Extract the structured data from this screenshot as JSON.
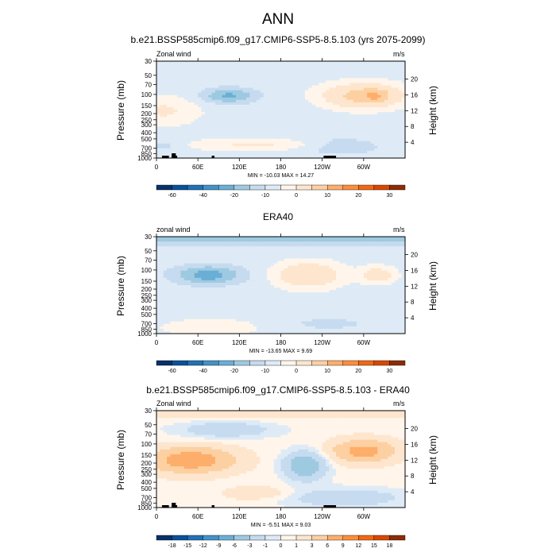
{
  "figure": {
    "title": "ANN"
  },
  "colormap": [
    "#08306b",
    "#08519c",
    "#2171b5",
    "#4292c6",
    "#6baed6",
    "#9ecae1",
    "#c6dbef",
    "#deebf7",
    "#fff5eb",
    "#fee6ce",
    "#fdd0a2",
    "#fdae6b",
    "#fd8d3c",
    "#f16913",
    "#d94801",
    "#8c2d04"
  ],
  "chart_data": [
    {
      "type": "heatmap",
      "title": "b.e21.BSSP585cmip6.f09_g17.CMIP6-SSP5-8.5.103 (yrs 2075-2099)",
      "left_label": "Zonal wind",
      "right_label": "m/s",
      "xlabel": "",
      "ylabel": "Pressure (mb)",
      "y2label": "Height (km)",
      "x_ticks": [
        "0",
        "60E",
        "120E",
        "180",
        "120W",
        "60W"
      ],
      "y_ticks": [
        "30",
        "50",
        "70",
        "100",
        "150",
        "200",
        "250",
        "300",
        "400",
        "500",
        "700",
        "850",
        "1000"
      ],
      "y2_ticks": [
        "20",
        "16",
        "12",
        "8",
        "4"
      ],
      "xlim": [
        0,
        360
      ],
      "ylim": [
        1000,
        30
      ],
      "stats": "MIN = -10.03  MAX =  14.27",
      "levels": [
        "-60",
        "-40",
        "-20",
        "-10",
        "0",
        "10",
        "20",
        "30"
      ],
      "features": [
        {
          "lon": 105,
          "p": 100,
          "value": -6
        },
        {
          "lon": 280,
          "p": 100,
          "value": 12
        },
        {
          "lon": 315,
          "p": 110,
          "value": 14
        },
        {
          "lon": 20,
          "p": 200,
          "value": 6
        },
        {
          "lon": 150,
          "p": 600,
          "value": 5
        },
        {
          "lon": 270,
          "p": 650,
          "value": -3
        }
      ]
    },
    {
      "type": "heatmap",
      "title": "ERA40",
      "left_label": "zonal wind",
      "right_label": "m/s",
      "xlabel": "",
      "ylabel": "Pressure (mb)",
      "y2label": "Height (km)",
      "x_ticks": [
        "0",
        "60E",
        "120E",
        "180",
        "120W",
        "60W"
      ],
      "y_ticks": [
        "30",
        "50",
        "70",
        "100",
        "150",
        "200",
        "250",
        "300",
        "400",
        "500",
        "700",
        "850",
        "1000"
      ],
      "y2_ticks": [
        "20",
        "16",
        "12",
        "8",
        "4"
      ],
      "xlim": [
        0,
        360
      ],
      "ylim": [
        1000,
        30
      ],
      "stats": "MIN = -13.65  MAX =   9.69",
      "levels": [
        "-60",
        "-40",
        "-20",
        "-10",
        "0",
        "10",
        "20",
        "30"
      ],
      "features": [
        {
          "lon": 75,
          "p": 120,
          "value": -8
        },
        {
          "lon": 220,
          "p": 120,
          "value": 8
        },
        {
          "lon": 320,
          "p": 120,
          "value": 7
        },
        {
          "lon": 0,
          "p": 40,
          "value": -4
        },
        {
          "lon": 80,
          "p": 800,
          "value": 3
        }
      ]
    },
    {
      "type": "heatmap",
      "title": "b.e21.BSSP585cmip6.f09_g17.CMIP6-SSP5-8.5.103 - ERA40",
      "left_label": "Zonal wind",
      "right_label": "m/s",
      "xlabel": "",
      "ylabel": "Pressure (mb)",
      "y2label": "Height (km)",
      "x_ticks": [
        "0",
        "60E",
        "120E",
        "180",
        "120W",
        "60W"
      ],
      "y_ticks": [
        "30",
        "50",
        "70",
        "100",
        "150",
        "200",
        "250",
        "300",
        "400",
        "500",
        "700",
        "850",
        "1000"
      ],
      "y2_ticks": [
        "20",
        "16",
        "12",
        "8",
        "4"
      ],
      "xlim": [
        0,
        360
      ],
      "ylim": [
        1000,
        30
      ],
      "stats": "MIN =  -5.51  MAX =   9.03",
      "levels": [
        "-18",
        "-15",
        "-12",
        "-9",
        "-6",
        "-3",
        "-1",
        "0",
        "1",
        "3",
        "6",
        "9",
        "12",
        "15",
        "18"
      ],
      "features": [
        {
          "lon": 50,
          "p": 180,
          "value": 7
        },
        {
          "lon": 220,
          "p": 200,
          "value": -5
        },
        {
          "lon": 300,
          "p": 130,
          "value": 6
        },
        {
          "lon": 100,
          "p": 60,
          "value": -3
        },
        {
          "lon": 280,
          "p": 700,
          "value": -3
        }
      ]
    }
  ]
}
